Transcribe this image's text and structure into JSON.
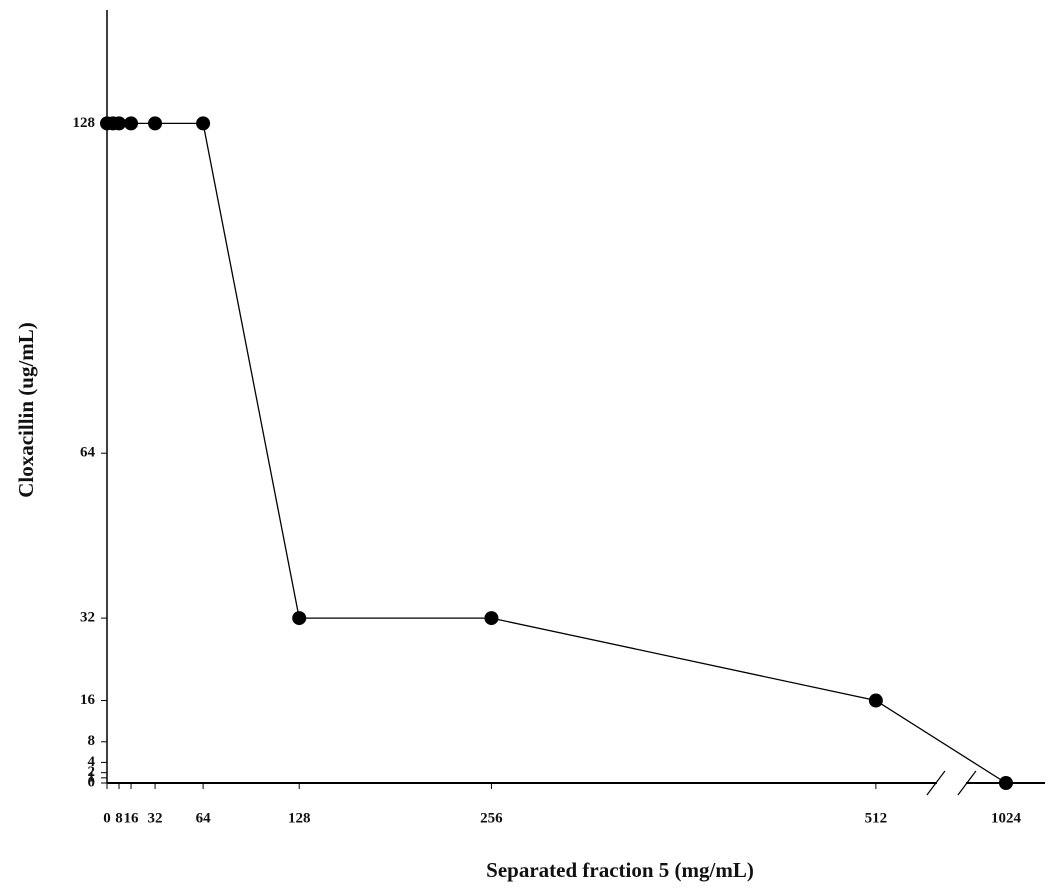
{
  "chart_data": {
    "type": "line",
    "x_label": "Separated fraction 5 (mg/mL)",
    "y_label": "Cloxacillin (ug/mL)",
    "x": [
      0,
      4,
      8,
      16,
      32,
      64,
      128,
      256,
      512,
      1024
    ],
    "series": [
      {
        "color": "#000000",
        "values": [
          128,
          128,
          128,
          128,
          128,
          128,
          32,
          32,
          16,
          0
        ]
      }
    ],
    "xlim": [
      0,
      1050
    ],
    "x_break": [
      550,
      1000
    ],
    "xticks": [
      0,
      8,
      16,
      32,
      64,
      128,
      256,
      512,
      1024
    ],
    "ylim": [
      0,
      150
    ],
    "yticks": [
      0,
      1,
      2,
      4,
      8,
      16,
      32,
      64,
      128
    ],
    "grid": false
  }
}
